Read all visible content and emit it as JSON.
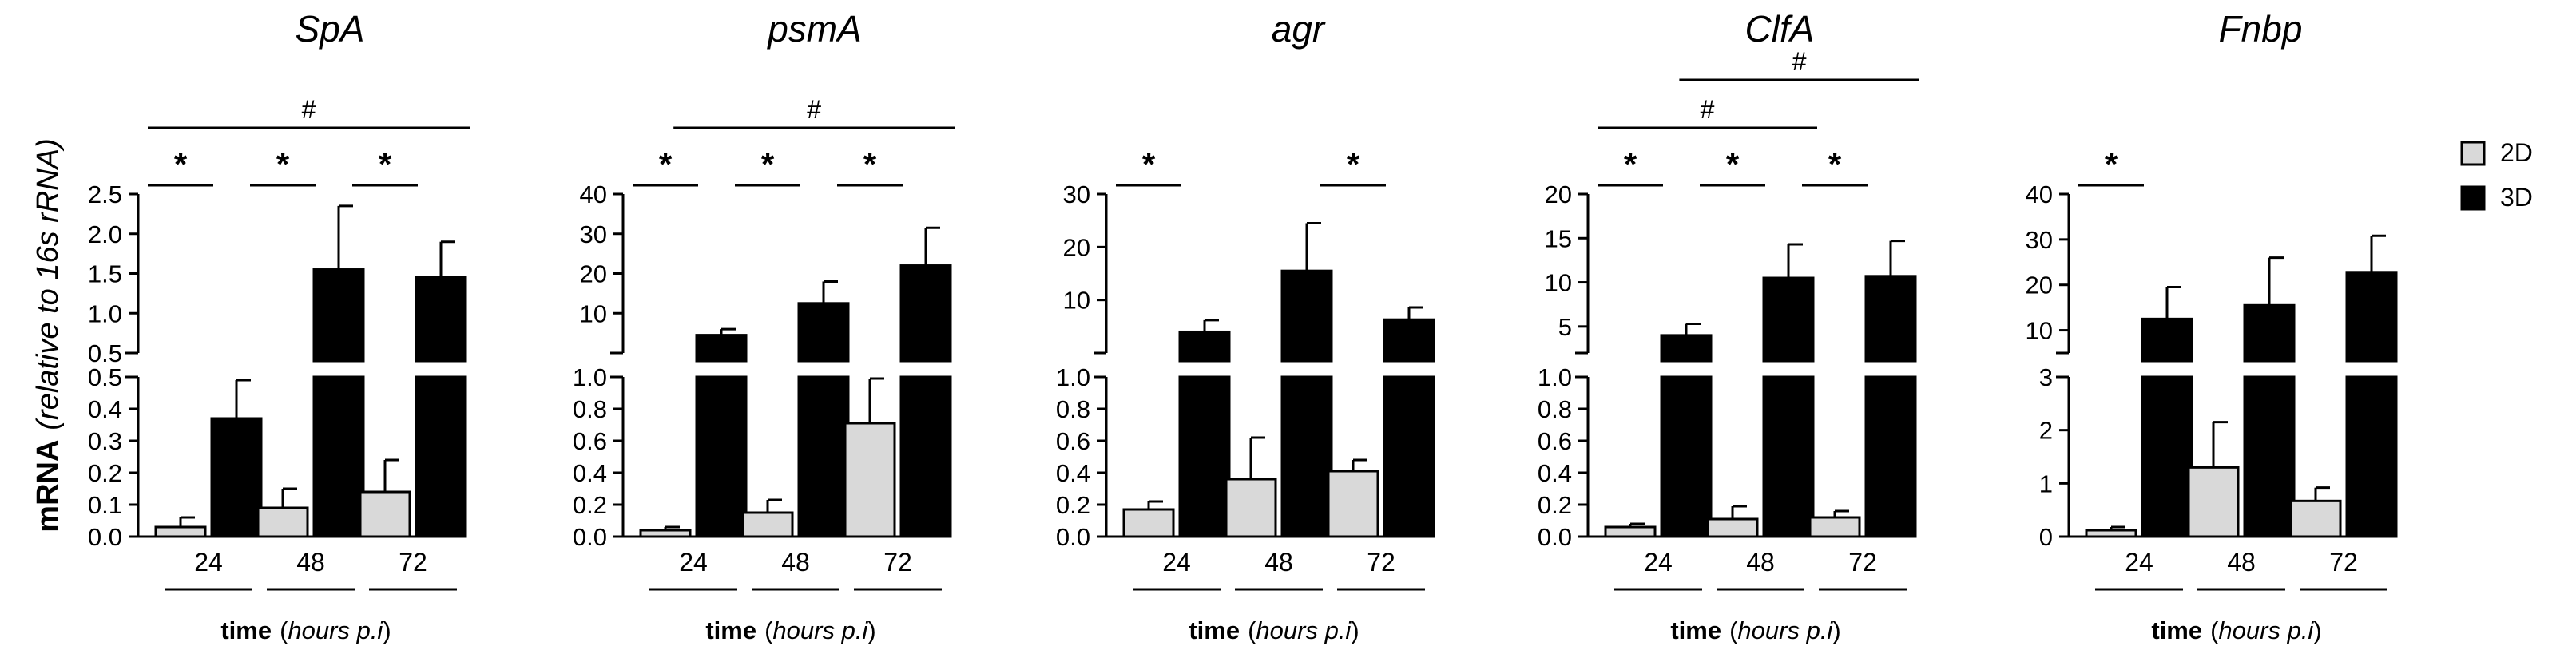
{
  "figure": {
    "y_axis_label_bold": "mRNA",
    "y_axis_label_italic": "(relative to 16s rRNA)",
    "legend": [
      {
        "name": "2D",
        "color": "#d9d9d9"
      },
      {
        "name": "3D",
        "color": "#000000"
      }
    ]
  },
  "chart_data": [
    {
      "type": "bar",
      "title": "SpA",
      "categories": [
        "24",
        "48",
        "72"
      ],
      "xlabel_bold": "time",
      "xlabel_italic": "(hours p.i)",
      "series": [
        {
          "name": "2D",
          "values": [
            0.03,
            0.09,
            0.14
          ],
          "errors": [
            0.03,
            0.06,
            0.1
          ]
        },
        {
          "name": "3D",
          "values": [
            0.37,
            1.55,
            1.45
          ],
          "errors": [
            0.12,
            0.8,
            0.45
          ]
        }
      ],
      "lower_axis": {
        "range": [
          0,
          0.5
        ],
        "ticks": [
          "0.0",
          "0.1",
          "0.2",
          "0.3",
          "0.4",
          "0.5"
        ]
      },
      "upper_axis": {
        "range": [
          0.5,
          2.5
        ],
        "ticks": [
          "0.5",
          "1.0",
          "1.5",
          "2.0",
          "2.5"
        ]
      },
      "significance": [
        {
          "label": "*",
          "from": 0,
          "to": 0,
          "row": 0
        },
        {
          "label": "*",
          "from": 1,
          "to": 1,
          "row": 0
        },
        {
          "label": "*",
          "from": 2,
          "to": 2,
          "row": 0
        },
        {
          "label": "#",
          "from": 0,
          "to": 2,
          "row": 1
        }
      ]
    },
    {
      "type": "bar",
      "title": "psmA",
      "categories": [
        "24",
        "48",
        "72"
      ],
      "xlabel_bold": "time",
      "xlabel_italic": "(hours p.i)",
      "series": [
        {
          "name": "2D",
          "values": [
            0.04,
            0.15,
            0.71
          ],
          "errors": [
            0.02,
            0.08,
            0.28
          ]
        },
        {
          "name": "3D",
          "values": [
            4.5,
            12.5,
            22.0
          ],
          "errors": [
            1.5,
            5.5,
            9.5
          ]
        }
      ],
      "lower_axis": {
        "range": [
          0,
          1.0
        ],
        "ticks": [
          "0.0",
          "0.2",
          "0.4",
          "0.6",
          "0.8",
          "1.0"
        ]
      },
      "upper_axis": {
        "range": [
          0,
          40
        ],
        "ticks": [
          "10",
          "20",
          "30",
          "40"
        ]
      },
      "significance": [
        {
          "label": "*",
          "from": 0,
          "to": 0,
          "row": 0
        },
        {
          "label": "*",
          "from": 1,
          "to": 1,
          "row": 0
        },
        {
          "label": "*",
          "from": 2,
          "to": 2,
          "row": 0
        },
        {
          "label": "#",
          "from": 0.4,
          "to": 2,
          "row": 1
        }
      ]
    },
    {
      "type": "bar",
      "title": "agr",
      "categories": [
        "24",
        "48",
        "72"
      ],
      "xlabel_bold": "time",
      "xlabel_italic": "(hours p.i)",
      "series": [
        {
          "name": "2D",
          "values": [
            0.17,
            0.36,
            0.41
          ],
          "errors": [
            0.05,
            0.26,
            0.07
          ]
        },
        {
          "name": "3D",
          "values": [
            4.0,
            15.5,
            6.3
          ],
          "errors": [
            2.2,
            9.0,
            2.3
          ]
        }
      ],
      "lower_axis": {
        "range": [
          0,
          1.0
        ],
        "ticks": [
          "0.0",
          "0.2",
          "0.4",
          "0.6",
          "0.8",
          "1.0"
        ]
      },
      "upper_axis": {
        "range": [
          0,
          30
        ],
        "ticks": [
          "10",
          "20",
          "30"
        ]
      },
      "significance": [
        {
          "label": "*",
          "from": 0,
          "to": 0,
          "row": 0
        },
        {
          "label": "*",
          "from": 2,
          "to": 2,
          "row": 0
        }
      ]
    },
    {
      "type": "bar",
      "title": "ClfA",
      "categories": [
        "24",
        "48",
        "72"
      ],
      "xlabel_bold": "time",
      "xlabel_italic": "(hours p.i)",
      "series": [
        {
          "name": "2D",
          "values": [
            0.06,
            0.11,
            0.12
          ],
          "errors": [
            0.02,
            0.08,
            0.04
          ]
        },
        {
          "name": "3D",
          "values": [
            4.0,
            10.5,
            10.7
          ],
          "errors": [
            1.3,
            3.8,
            4.0
          ]
        }
      ],
      "lower_axis": {
        "range": [
          0,
          1.0
        ],
        "ticks": [
          "0.0",
          "0.2",
          "0.4",
          "0.6",
          "0.8",
          "1.0"
        ]
      },
      "upper_axis": {
        "range": [
          2,
          20
        ],
        "ticks": [
          "5",
          "10",
          "15",
          "20"
        ]
      },
      "significance": [
        {
          "label": "*",
          "from": 0,
          "to": 0,
          "row": 0
        },
        {
          "label": "*",
          "from": 1,
          "to": 1,
          "row": 0
        },
        {
          "label": "*",
          "from": 2,
          "to": 2,
          "row": 0
        },
        {
          "label": "#",
          "from": 0,
          "to": 1,
          "row": 1
        },
        {
          "label": "#",
          "from": -0.2,
          "to": 2,
          "row": 2
        }
      ]
    },
    {
      "type": "bar",
      "title": "Fnbp",
      "categories": [
        "24",
        "48",
        "72"
      ],
      "xlabel_bold": "time",
      "xlabel_italic": "(hours p.i)",
      "series": [
        {
          "name": "2D",
          "values": [
            0.12,
            1.3,
            0.67
          ],
          "errors": [
            0.06,
            0.85,
            0.25
          ]
        },
        {
          "name": "3D",
          "values": [
            12.5,
            15.5,
            22.8
          ],
          "errors": [
            7.0,
            10.5,
            8.0
          ]
        }
      ],
      "lower_axis": {
        "range": [
          0,
          3
        ],
        "ticks": [
          "0",
          "1",
          "2",
          "3"
        ]
      },
      "upper_axis": {
        "range": [
          5,
          40
        ],
        "ticks": [
          "10",
          "20",
          "30",
          "40"
        ]
      },
      "significance": [
        {
          "label": "*",
          "from": 0,
          "to": 0,
          "row": 0
        }
      ]
    }
  ]
}
